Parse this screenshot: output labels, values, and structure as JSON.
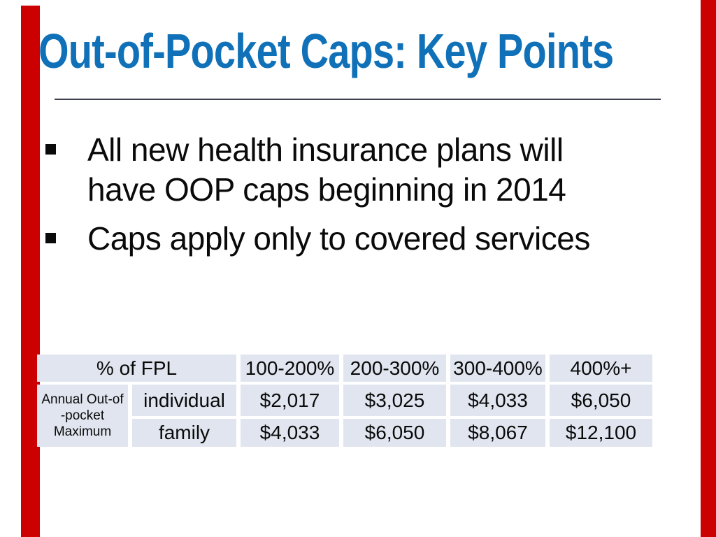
{
  "slide": {
    "title": "Out-of-Pocket Caps: Key Points",
    "bullets": [
      {
        "lines": [
          "All new health insurance plans will",
          "have OOP caps beginning in 2014"
        ]
      },
      {
        "lines": [
          "Caps apply only to covered services"
        ]
      }
    ],
    "table": {
      "header": {
        "fpl_label": "% of FPL",
        "ranges": [
          "100-200%",
          "200-300%",
          "300-400%",
          "400%+"
        ]
      },
      "row_group_label_lines": [
        "Annual Out-of",
        "-pocket",
        "Maximum"
      ],
      "rows": [
        {
          "label": "individual",
          "values": [
            "$2,017",
            "$3,025",
            "$4,033",
            "$6,050"
          ]
        },
        {
          "label": "family",
          "values": [
            "$4,033",
            "$6,050",
            "$8,067",
            "$12,100"
          ]
        }
      ]
    },
    "colors": {
      "title_blue": "#1071b8",
      "accent_red": "#cc0000",
      "table_cell_bg": "#e0e5ef",
      "underline_gray": "#3e4050"
    }
  },
  "chart_data": {
    "type": "table",
    "title": "Annual Out-of-pocket Maximum by % of FPL",
    "columns": [
      "% of FPL",
      "100-200%",
      "200-300%",
      "300-400%",
      "400%+"
    ],
    "row_group_label": "Annual Out-of-pocket Maximum",
    "rows": [
      [
        "individual",
        "$2,017",
        "$3,025",
        "$4,033",
        "$6,050"
      ],
      [
        "family",
        "$4,033",
        "$6,050",
        "$8,067",
        "$12,100"
      ]
    ]
  }
}
